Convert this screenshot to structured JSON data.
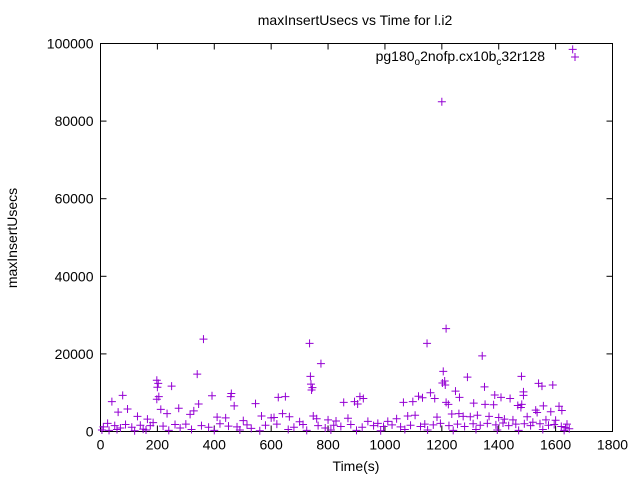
{
  "chart_data": {
    "type": "scatter",
    "title": "maxInsertUsecs vs Time for l.i2",
    "xlabel": "Time(s)",
    "ylabel": "maxInsertUsecs",
    "xlim": [
      0,
      1800
    ],
    "ylim": [
      0,
      100000
    ],
    "xticks": [
      0,
      200,
      400,
      600,
      800,
      1000,
      1200,
      1400,
      1600,
      1800
    ],
    "yticks": [
      0,
      20000,
      40000,
      60000,
      80000,
      100000
    ],
    "grid": false,
    "legend_position": "top-right",
    "marker": "+",
    "series": [
      {
        "name": "pg180_o2nofp.cx10b_c32r128",
        "legend_parts": [
          {
            "text": "pg180",
            "sub": false
          },
          {
            "text": "o",
            "sub": true
          },
          {
            "text": "2nofp.cx10b",
            "sub": false
          },
          {
            "text": "c",
            "sub": true
          },
          {
            "text": "32r128",
            "sub": false
          }
        ],
        "color": "#9400d3",
        "points": [
          [
            1660,
            98500
          ],
          [
            1200,
            85000
          ],
          [
            1215,
            26500
          ],
          [
            362,
            23800
          ],
          [
            735,
            22700
          ],
          [
            1148,
            22700
          ],
          [
            1342,
            19500
          ],
          [
            775,
            17500
          ],
          [
            1205,
            15500
          ],
          [
            1210,
            13000
          ],
          [
            1202,
            12500
          ],
          [
            1212,
            12000
          ],
          [
            340,
            14800
          ],
          [
            738,
            14200
          ],
          [
            1480,
            14200
          ],
          [
            198,
            13200
          ],
          [
            203,
            12400
          ],
          [
            200,
            11400
          ],
          [
            250,
            11700
          ],
          [
            740,
            12200
          ],
          [
            745,
            11300
          ],
          [
            742,
            10700
          ],
          [
            1290,
            14000
          ],
          [
            1540,
            12400
          ],
          [
            1552,
            11700
          ],
          [
            1590,
            12000
          ],
          [
            1350,
            11500
          ],
          [
            1248,
            10400
          ],
          [
            1160,
            10000
          ],
          [
            1487,
            10200
          ],
          [
            1487,
            9300
          ],
          [
            460,
            9800
          ],
          [
            458,
            9000
          ],
          [
            392,
            9200
          ],
          [
            650,
            9000
          ],
          [
            625,
            8800
          ],
          [
            205,
            9000
          ],
          [
            198,
            8300
          ],
          [
            1118,
            9100
          ],
          [
            1262,
            8800
          ],
          [
            1132,
            8700
          ],
          [
            1175,
            8500
          ],
          [
            1386,
            9400
          ],
          [
            1408,
            8800
          ],
          [
            1440,
            8500
          ],
          [
            912,
            9000
          ],
          [
            924,
            8500
          ],
          [
            893,
            7700
          ],
          [
            904,
            7100
          ],
          [
            1098,
            7700
          ],
          [
            1065,
            7500
          ],
          [
            1215,
            7500
          ],
          [
            1223,
            7000
          ],
          [
            1312,
            7300
          ],
          [
            1352,
            7000
          ],
          [
            1382,
            6900
          ],
          [
            1467,
            6700
          ],
          [
            1481,
            7000
          ],
          [
            1478,
            6200
          ],
          [
            1557,
            6600
          ],
          [
            1612,
            6500
          ],
          [
            1622,
            5400
          ],
          [
            1530,
            5500
          ],
          [
            1535,
            4900
          ],
          [
            1583,
            5100
          ],
          [
            40,
            7700
          ],
          [
            78,
            9300
          ],
          [
            62,
            5000
          ],
          [
            95,
            5800
          ],
          [
            130,
            3900
          ],
          [
            165,
            3200
          ],
          [
            212,
            5700
          ],
          [
            234,
            4600
          ],
          [
            275,
            6000
          ],
          [
            315,
            4400
          ],
          [
            328,
            5300
          ],
          [
            345,
            7100
          ],
          [
            410,
            3700
          ],
          [
            440,
            3500
          ],
          [
            470,
            6600
          ],
          [
            502,
            2800
          ],
          [
            545,
            7200
          ],
          [
            566,
            4000
          ],
          [
            600,
            3500
          ],
          [
            610,
            3600
          ],
          [
            640,
            4600
          ],
          [
            664,
            3800
          ],
          [
            700,
            2500
          ],
          [
            748,
            4000
          ],
          [
            760,
            3300
          ],
          [
            800,
            3000
          ],
          [
            828,
            2700
          ],
          [
            855,
            7500
          ],
          [
            870,
            3400
          ],
          [
            940,
            2600
          ],
          [
            975,
            2100
          ],
          [
            1010,
            2600
          ],
          [
            1041,
            3300
          ],
          [
            1080,
            4000
          ],
          [
            1106,
            4200
          ],
          [
            1183,
            3700
          ],
          [
            1235,
            4500
          ],
          [
            1260,
            4600
          ],
          [
            1275,
            3900
          ],
          [
            1300,
            3800
          ],
          [
            1325,
            4200
          ],
          [
            1366,
            3900
          ],
          [
            1400,
            3600
          ],
          [
            1420,
            3200
          ],
          [
            1450,
            3000
          ],
          [
            1500,
            3800
          ],
          [
            1520,
            2400
          ],
          [
            1566,
            3000
          ],
          [
            1600,
            2900
          ],
          [
            1640,
            1900
          ],
          [
            10,
            1200
          ],
          [
            25,
            2100
          ],
          [
            50,
            1500
          ],
          [
            70,
            900
          ],
          [
            88,
            1800
          ],
          [
            110,
            1100
          ],
          [
            140,
            1600
          ],
          [
            150,
            600
          ],
          [
            175,
            1500
          ],
          [
            185,
            2300
          ],
          [
            220,
            1400
          ],
          [
            262,
            1800
          ],
          [
            280,
            900
          ],
          [
            300,
            1900
          ],
          [
            355,
            1500
          ],
          [
            380,
            1100
          ],
          [
            420,
            2000
          ],
          [
            450,
            1400
          ],
          [
            480,
            1200
          ],
          [
            515,
            1700
          ],
          [
            530,
            800
          ],
          [
            580,
            1600
          ],
          [
            620,
            1900
          ],
          [
            680,
            1100
          ],
          [
            712,
            1800
          ],
          [
            765,
            1500
          ],
          [
            790,
            900
          ],
          [
            820,
            1600
          ],
          [
            845,
            1300
          ],
          [
            880,
            1800
          ],
          [
            920,
            1100
          ],
          [
            960,
            1500
          ],
          [
            995,
            1300
          ],
          [
            1025,
            1700
          ],
          [
            1055,
            1200
          ],
          [
            1090,
            1600
          ],
          [
            1125,
            1300
          ],
          [
            1140,
            1900
          ],
          [
            1170,
            1700
          ],
          [
            1195,
            2100
          ],
          [
            1225,
            1500
          ],
          [
            1255,
            1900
          ],
          [
            1280,
            1300
          ],
          [
            1310,
            2000
          ],
          [
            1335,
            1600
          ],
          [
            1360,
            2100
          ],
          [
            1390,
            1700
          ],
          [
            1415,
            2200
          ],
          [
            1435,
            1500
          ],
          [
            1460,
            1900
          ],
          [
            1490,
            2000
          ],
          [
            1512,
            1500
          ],
          [
            1545,
            2000
          ],
          [
            1575,
            1600
          ],
          [
            1595,
            1800
          ],
          [
            1620,
            1300
          ],
          [
            1635,
            1000
          ],
          [
            1648,
            700
          ],
          [
            5,
            400
          ],
          [
            30,
            300
          ],
          [
            58,
            500
          ],
          [
            120,
            200
          ],
          [
            160,
            400
          ],
          [
            240,
            300
          ],
          [
            320,
            500
          ],
          [
            400,
            300
          ],
          [
            490,
            400
          ],
          [
            560,
            200
          ],
          [
            660,
            500
          ],
          [
            725,
            300
          ],
          [
            810,
            400
          ],
          [
            900,
            300
          ],
          [
            985,
            200
          ],
          [
            1070,
            500
          ],
          [
            1150,
            400
          ],
          [
            1240,
            300
          ],
          [
            1320,
            500
          ],
          [
            1395,
            400
          ],
          [
            1470,
            300
          ],
          [
            1555,
            500
          ],
          [
            1630,
            300
          ]
        ]
      }
    ]
  }
}
